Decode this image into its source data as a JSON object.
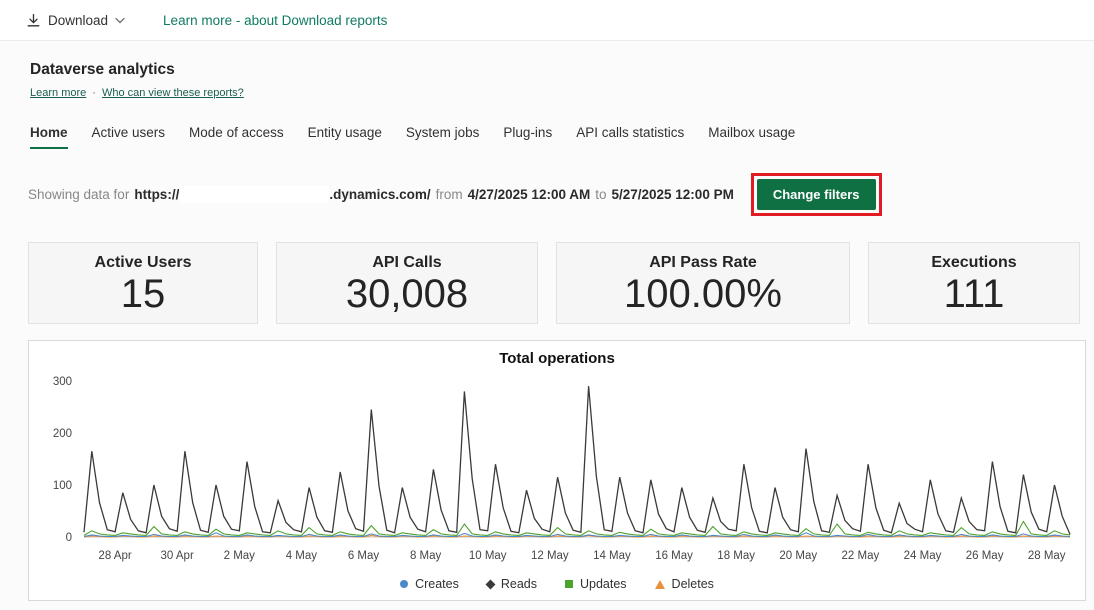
{
  "topbar": {
    "download_label": "Download",
    "learn_link": "Learn more - about Download reports"
  },
  "header": {
    "title": "Dataverse analytics",
    "learn_more": "Learn more",
    "separator": "·",
    "who_can_view": "Who can view these reports?"
  },
  "tabs": [
    {
      "label": "Home",
      "active": true
    },
    {
      "label": "Active users",
      "active": false
    },
    {
      "label": "Mode of access",
      "active": false
    },
    {
      "label": "Entity usage",
      "active": false
    },
    {
      "label": "System jobs",
      "active": false
    },
    {
      "label": "Plug-ins",
      "active": false
    },
    {
      "label": "API calls statistics",
      "active": false
    },
    {
      "label": "Mailbox usage",
      "active": false
    }
  ],
  "filter_bar": {
    "prefix": "Showing data for",
    "url_scheme": "https://",
    "url_suffix": ".dynamics.com/",
    "from_word": "from",
    "start_datetime": "4/27/2025 12:00 AM",
    "to_word": "to",
    "end_datetime": "5/27/2025 12:00 PM",
    "button_label": "Change filters"
  },
  "cards": [
    {
      "title": "Active Users",
      "value": "15"
    },
    {
      "title": "API Calls",
      "value": "30,008"
    },
    {
      "title": "API Pass Rate",
      "value": "100.00%"
    },
    {
      "title": "Executions",
      "value": "111"
    }
  ],
  "colors": {
    "accent_green": "#0f7043",
    "link_green": "#0f7b63",
    "annotation_red": "#e01b24"
  },
  "chart_data": {
    "type": "line",
    "title": "Total operations",
    "xlabel": "",
    "ylabel": "",
    "ylim": [
      0,
      300
    ],
    "yticks": [
      0,
      100,
      200,
      300
    ],
    "grid": false,
    "legend_position": "bottom",
    "points_per_day": 4,
    "days": 32,
    "x_start": "27 Apr",
    "x_tick_labels": [
      "28 Apr",
      "30 Apr",
      "2 May",
      "4 May",
      "6 May",
      "8 May",
      "10 May",
      "12 May",
      "14 May",
      "16 May",
      "18 May",
      "20 May",
      "22 May",
      "24 May",
      "26 May",
      "28 May"
    ],
    "x_tick_day_indices": [
      1,
      3,
      5,
      7,
      9,
      11,
      13,
      15,
      17,
      19,
      21,
      23,
      25,
      27,
      29,
      31
    ],
    "series": [
      {
        "name": "Creates",
        "color": "#4a89c7",
        "marker": "circle",
        "values": [
          1,
          4,
          2,
          1,
          1,
          3,
          2,
          1,
          1,
          5,
          2,
          1,
          1,
          4,
          2,
          1,
          1,
          8,
          2,
          1,
          1,
          4,
          2,
          1,
          1,
          3,
          2,
          1,
          1,
          5,
          2,
          1,
          1,
          4,
          2,
          1,
          1,
          6,
          2,
          1,
          1,
          3,
          2,
          1,
          1,
          4,
          2,
          1,
          1,
          7,
          2,
          1,
          1,
          4,
          2,
          1,
          1,
          3,
          2,
          1,
          1,
          5,
          2,
          1,
          1,
          4,
          2,
          1,
          1,
          3,
          2,
          1,
          1,
          5,
          2,
          1,
          1,
          4,
          2,
          1,
          1,
          3,
          2,
          1,
          1,
          5,
          2,
          1,
          1,
          4,
          2,
          1,
          1,
          8,
          2,
          1,
          1,
          3,
          2,
          1,
          1,
          5,
          2,
          1,
          1,
          4,
          2,
          1,
          1,
          3,
          2,
          1,
          1,
          5,
          2,
          1,
          1,
          4,
          2,
          1,
          1,
          6,
          2,
          1,
          1,
          4,
          2,
          1
        ]
      },
      {
        "name": "Reads",
        "color": "#3b3a39",
        "marker": "diamond",
        "values": [
          9,
          165,
          66,
          14,
          10,
          85,
          34,
          12,
          8,
          100,
          40,
          16,
          11,
          165,
          66,
          13,
          9,
          100,
          40,
          15,
          12,
          145,
          58,
          10,
          8,
          70,
          28,
          14,
          10,
          95,
          38,
          12,
          9,
          125,
          50,
          16,
          11,
          245,
          98,
          13,
          8,
          95,
          38,
          15,
          10,
          130,
          52,
          12,
          9,
          280,
          112,
          14,
          12,
          140,
          56,
          11,
          8,
          90,
          36,
          15,
          10,
          115,
          46,
          13,
          9,
          290,
          116,
          14,
          11,
          115,
          46,
          12,
          8,
          110,
          44,
          16,
          10,
          95,
          38,
          13,
          9,
          75,
          30,
          15,
          12,
          140,
          56,
          11,
          8,
          95,
          38,
          14,
          10,
          170,
          68,
          12,
          9,
          80,
          32,
          16,
          11,
          140,
          56,
          13,
          8,
          65,
          26,
          15,
          10,
          110,
          44,
          12,
          9,
          75,
          30,
          14,
          12,
          145,
          58,
          11,
          8,
          120,
          48,
          15,
          10,
          100,
          40,
          5
        ]
      },
      {
        "name": "Updates",
        "color": "#4ca32e",
        "marker": "square",
        "values": [
          3,
          12,
          6,
          4,
          3,
          8,
          6,
          4,
          3,
          20,
          6,
          4,
          3,
          10,
          6,
          4,
          3,
          15,
          6,
          4,
          3,
          8,
          6,
          4,
          3,
          12,
          6,
          4,
          3,
          18,
          6,
          4,
          3,
          10,
          6,
          4,
          3,
          22,
          6,
          4,
          3,
          8,
          6,
          4,
          3,
          14,
          6,
          4,
          3,
          25,
          6,
          4,
          3,
          10,
          6,
          4,
          3,
          8,
          6,
          4,
          3,
          18,
          6,
          4,
          3,
          12,
          6,
          4,
          3,
          9,
          6,
          4,
          3,
          15,
          6,
          4,
          3,
          8,
          6,
          4,
          3,
          20,
          6,
          4,
          3,
          10,
          6,
          4,
          3,
          8,
          6,
          4,
          3,
          16,
          6,
          4,
          3,
          25,
          6,
          4,
          3,
          9,
          6,
          4,
          3,
          12,
          6,
          4,
          3,
          8,
          6,
          4,
          3,
          18,
          6,
          4,
          3,
          10,
          6,
          4,
          3,
          30,
          6,
          4,
          3,
          12,
          6,
          4
        ]
      },
      {
        "name": "Deletes",
        "color": "#e8913d",
        "marker": "triangle",
        "values": [
          0,
          2,
          1,
          0,
          0,
          2,
          1,
          0,
          0,
          2,
          1,
          0,
          0,
          2,
          1,
          0,
          0,
          2,
          1,
          0,
          0,
          2,
          1,
          0,
          0,
          2,
          1,
          0,
          0,
          2,
          1,
          0,
          0,
          2,
          1,
          0,
          0,
          3,
          1,
          0,
          0,
          2,
          1,
          0,
          0,
          2,
          1,
          0,
          0,
          2,
          1,
          0,
          0,
          2,
          1,
          0,
          0,
          2,
          1,
          0,
          0,
          2,
          1,
          0,
          0,
          3,
          1,
          0,
          0,
          2,
          1,
          0,
          0,
          2,
          1,
          0,
          0,
          2,
          1,
          0,
          0,
          2,
          1,
          0,
          0,
          2,
          1,
          0,
          0,
          2,
          1,
          0,
          0,
          2,
          1,
          0,
          0,
          2,
          1,
          0,
          0,
          2,
          1,
          0,
          0,
          2,
          1,
          0,
          0,
          2,
          1,
          0,
          0,
          2,
          1,
          0,
          0,
          2,
          1,
          0,
          0,
          2,
          1,
          0,
          0,
          2,
          1,
          0
        ]
      }
    ]
  }
}
